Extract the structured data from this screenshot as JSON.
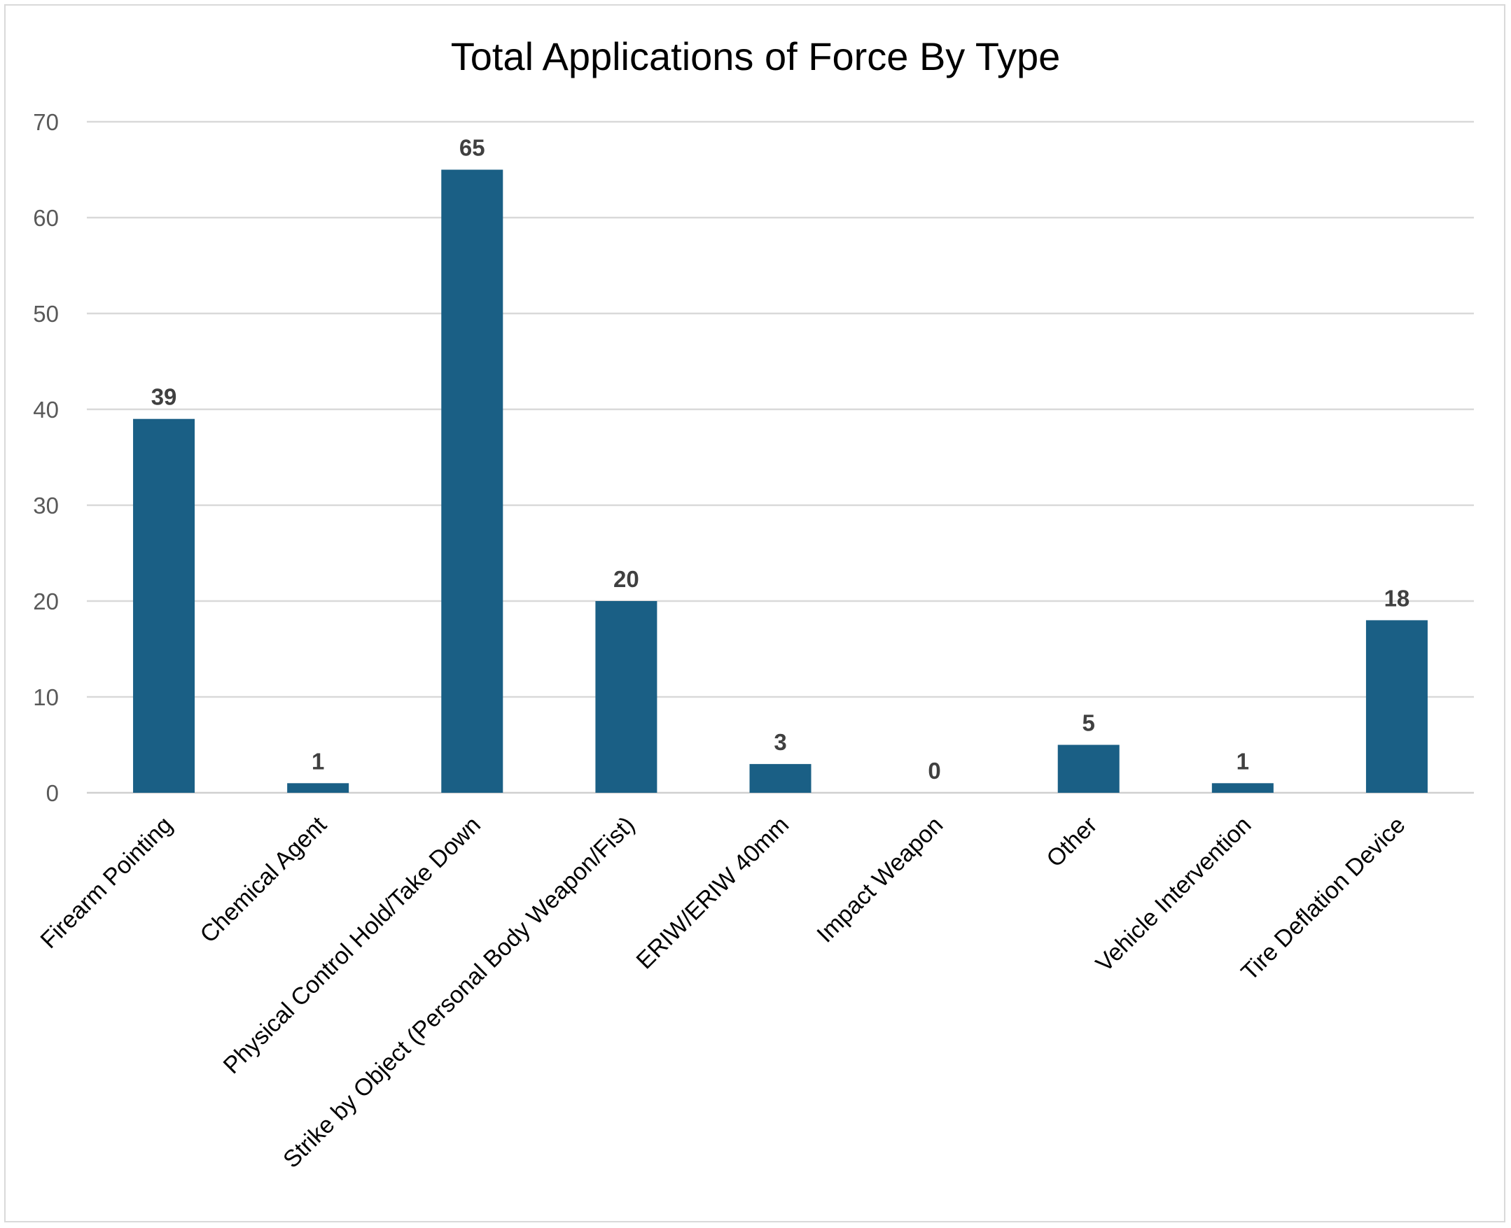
{
  "chart_data": {
    "type": "bar",
    "title": "Total Applications of Force By Type",
    "xlabel": "",
    "ylabel": "",
    "categories": [
      "Firearm Pointing",
      "Chemical Agent",
      "Physical Control Hold/Take Down",
      "Strike by Object (Personal Body Weapon/Fist)",
      "ERIW/ERIW 40mm",
      "Impact Weapon",
      "Other",
      "Vehicle Intervention",
      "Tire Deflation Device"
    ],
    "values": [
      39,
      1,
      65,
      20,
      3,
      0,
      5,
      1,
      18
    ],
    "ylim": [
      0,
      70
    ],
    "yticks": [
      0,
      10,
      20,
      30,
      40,
      50,
      60,
      70
    ],
    "grid": true,
    "legend": "none",
    "bar_color": "#1a5f85",
    "data_labels": true
  }
}
